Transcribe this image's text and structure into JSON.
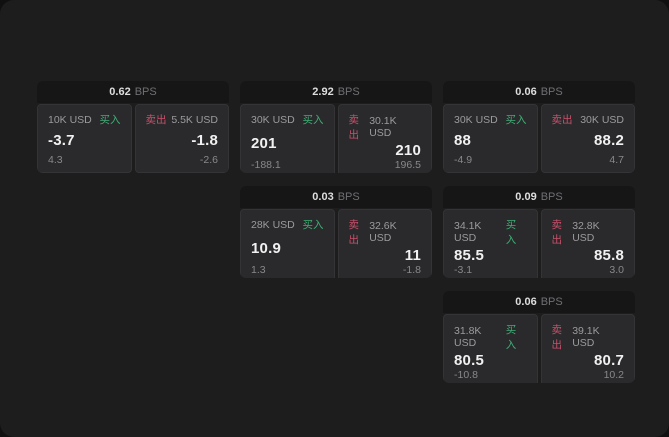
{
  "labels": {
    "bps_unit": "BPS",
    "buy": "买入",
    "sell": "卖出",
    "currency": "USD"
  },
  "colors": {
    "buy_green": "#3fae75",
    "sell_red": "#c9506a",
    "screen_bg": "#1d1d1e",
    "card_header_bg": "#161617",
    "panel_bg": "#2a2a2c",
    "big_text": "#f1f1f1",
    "muted_text": "#88888b"
  },
  "cards": [
    {
      "bps": "0.62",
      "buy": {
        "amount": "10K USD",
        "price": "-3.7",
        "delta": "4.3"
      },
      "sell": {
        "amount": "5.5K USD",
        "price": "-1.8",
        "delta": "-2.6"
      }
    },
    {
      "bps": "2.92",
      "buy": {
        "amount": "30K USD",
        "price": "201",
        "delta": "-188.1"
      },
      "sell": {
        "amount": "30.1K USD",
        "price": "210",
        "delta": "196.5"
      }
    },
    {
      "bps": "0.06",
      "buy": {
        "amount": "30K USD",
        "price": "88",
        "delta": "-4.9"
      },
      "sell": {
        "amount": "30K USD",
        "price": "88.2",
        "delta": "4.7"
      }
    },
    {
      "bps": "0.03",
      "buy": {
        "amount": "28K USD",
        "price": "10.9",
        "delta": "1.3"
      },
      "sell": {
        "amount": "32.6K USD",
        "price": "11",
        "delta": "-1.8"
      }
    },
    {
      "bps": "0.09",
      "buy": {
        "amount": "34.1K USD",
        "price": "85.5",
        "delta": "-3.1"
      },
      "sell": {
        "amount": "32.8K USD",
        "price": "85.8",
        "delta": "3.0"
      }
    },
    {
      "bps": "0.06",
      "buy": {
        "amount": "31.8K USD",
        "price": "80.5",
        "delta": "-10.8"
      },
      "sell": {
        "amount": "39.1K USD",
        "price": "80.7",
        "delta": "10.2"
      }
    }
  ]
}
